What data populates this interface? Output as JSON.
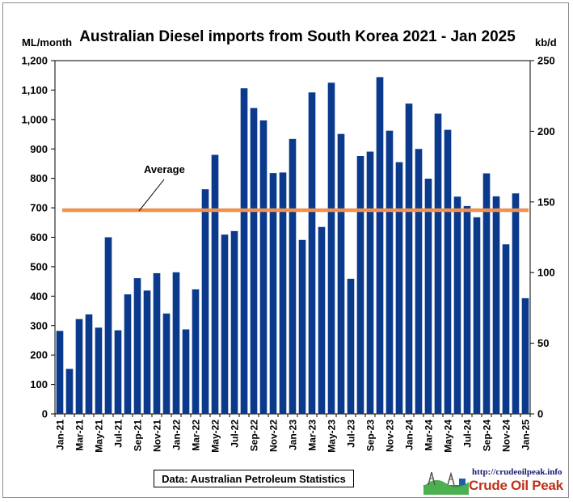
{
  "chart_data": {
    "type": "bar",
    "title": "Australian Diesel imports from South Korea  2021 - Jan 2025",
    "ylabel_left": "ML/month",
    "ylabel_right": "kb/d",
    "ylim_left": [
      0,
      1200
    ],
    "ylim_right": [
      0,
      250
    ],
    "y_ticks_left": [
      "0",
      "100",
      "200",
      "300",
      "400",
      "500",
      "600",
      "700",
      "800",
      "900",
      "1,000",
      "1,100",
      "1,200"
    ],
    "y_ticks_right": [
      "0",
      "50",
      "100",
      "150",
      "200",
      "250"
    ],
    "categories": [
      "Jan-21",
      "Feb-21",
      "Mar-21",
      "Apr-21",
      "May-21",
      "Jun-21",
      "Jul-21",
      "Aug-21",
      "Sep-21",
      "Oct-21",
      "Nov-21",
      "Dec-21",
      "Jan-22",
      "Feb-22",
      "Mar-22",
      "Apr-22",
      "May-22",
      "Jun-22",
      "Jul-22",
      "Aug-22",
      "Sep-22",
      "Oct-22",
      "Nov-22",
      "Dec-22",
      "Jan-23",
      "Feb-23",
      "Mar-23",
      "Apr-23",
      "May-23",
      "Jun-23",
      "Jul-23",
      "Aug-23",
      "Sep-23",
      "Oct-23",
      "Nov-23",
      "Dec-23",
      "Jan-24",
      "Feb-24",
      "Mar-24",
      "Apr-24",
      "May-24",
      "Jun-24",
      "Jul-24",
      "Aug-24",
      "Sep-24",
      "Oct-24",
      "Nov-24",
      "Dec-24",
      "Jan-25"
    ],
    "x_tick_labels": [
      "Jan-21",
      "",
      "Mar-21",
      "",
      "May-21",
      "",
      "Jul-21",
      "",
      "Sep-21",
      "",
      "Nov-21",
      "",
      "Jan-22",
      "",
      "Mar-22",
      "",
      "May-22",
      "",
      "Jul-22",
      "",
      "Sep-22",
      "",
      "Nov-22",
      "",
      "Jan-23",
      "",
      "Mar-23",
      "",
      "May-23",
      "",
      "Jul-23",
      "",
      "Sep-23",
      "",
      "Nov-23",
      "",
      "Jan-24",
      "",
      "Mar-24",
      "",
      "May-24",
      "",
      "Jul-24",
      "",
      "Sep-24",
      "",
      "Nov-24",
      "",
      "Jan-25"
    ],
    "series": [
      {
        "values": [
          282,
          153,
          322,
          338,
          293,
          600,
          284,
          406,
          461,
          419,
          478,
          341,
          481,
          287,
          423,
          763,
          880,
          609,
          621,
          1106,
          1039,
          997,
          818,
          820,
          934,
          591,
          1092,
          635,
          1125,
          951,
          459,
          876,
          891,
          1144,
          962,
          855,
          1054,
          900,
          799,
          1020,
          965,
          738,
          706,
          668,
          817,
          739,
          576,
          749,
          393
        ]
      }
    ],
    "average_line": {
      "label": "Average",
      "value": 692
    },
    "colors": {
      "bars": "#0b3a8c",
      "average": "#f0914d"
    },
    "grid": false
  },
  "source_note": "Data: Australian Petroleum Statistics",
  "logo": {
    "url": "http://crudeoilpeak.info",
    "name": "Crude Oil Peak"
  }
}
